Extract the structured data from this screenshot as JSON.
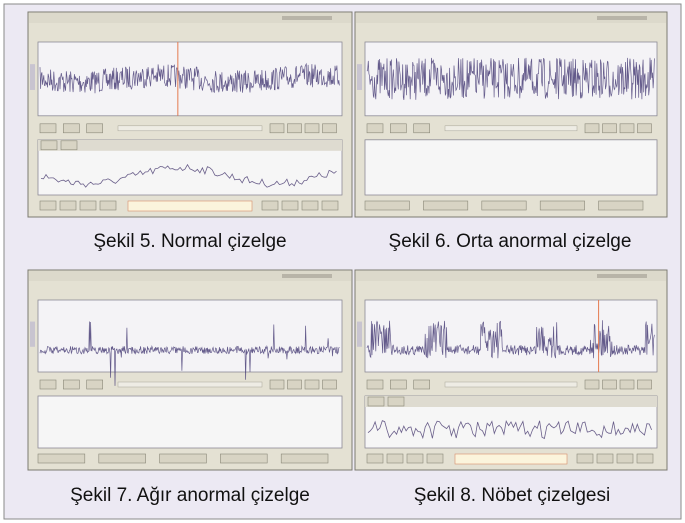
{
  "figures": [
    {
      "caption": "Şekil 5. Normal çizelge"
    },
    {
      "caption": "Şekil 6. Orta anormal çizelge"
    },
    {
      "caption": "Şekil 7. Ağır anormal çizelge"
    },
    {
      "caption": "Şekil 8. Nöbet çizelgesi"
    }
  ]
}
